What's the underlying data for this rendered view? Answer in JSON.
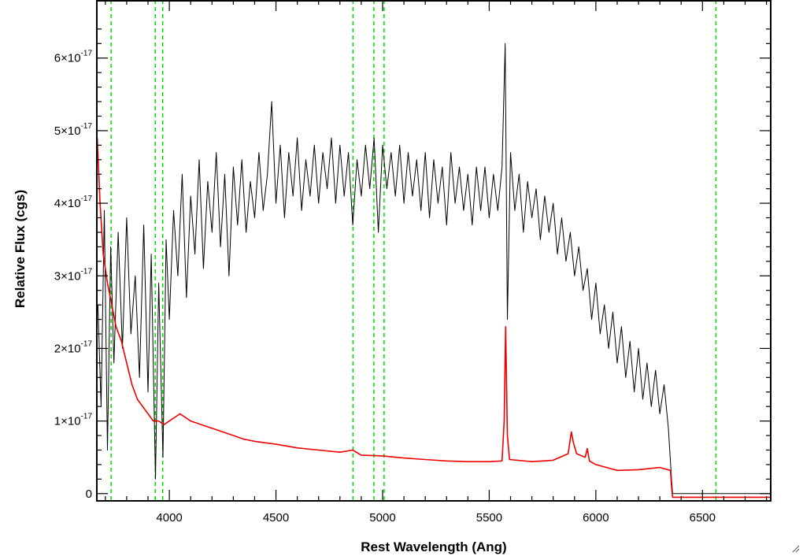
{
  "chart_data": {
    "type": "line",
    "title": "",
    "xlabel": "Rest Wavelength (Ang)",
    "ylabel": "Relative Flux (cgs)",
    "xlim": [
      3660,
      6820
    ],
    "ylim": [
      -1e-18,
      6.8e-17
    ],
    "x_ticks": [
      {
        "value": 4000,
        "label": "4000"
      },
      {
        "value": 4500,
        "label": "4500"
      },
      {
        "value": 5000,
        "label": "5000"
      },
      {
        "value": 5500,
        "label": "5500"
      },
      {
        "value": 6000,
        "label": "6000"
      },
      {
        "value": 6500,
        "label": "6500"
      }
    ],
    "y_ticks": [
      {
        "value": 0,
        "mantissa": "0",
        "exponent": ""
      },
      {
        "value": 1e-17,
        "mantissa": "1×10",
        "exponent": "-17"
      },
      {
        "value": 2e-17,
        "mantissa": "2×10",
        "exponent": "-17"
      },
      {
        "value": 3e-17,
        "mantissa": "3×10",
        "exponent": "-17"
      },
      {
        "value": 4e-17,
        "mantissa": "4×10",
        "exponent": "-17"
      },
      {
        "value": 5e-17,
        "mantissa": "5×10",
        "exponent": "-17"
      },
      {
        "value": 6e-17,
        "mantissa": "6×10",
        "exponent": "-17"
      }
    ],
    "reference_lines": {
      "color": "#00dd00",
      "style": "dashed",
      "x": [
        3727,
        3934,
        3969,
        4861,
        4959,
        5007,
        6563
      ]
    },
    "series": [
      {
        "role": "spectrum",
        "color": "#000000",
        "points": [
          [
            3665,
            2.6e-17
          ],
          [
            3680,
            1.2e-17
          ],
          [
            3695,
            3.9e-17
          ],
          [
            3710,
            6e-18
          ],
          [
            3725,
            3.4e-17
          ],
          [
            3740,
            1.8e-17
          ],
          [
            3760,
            3.6e-17
          ],
          [
            3780,
            2e-17
          ],
          [
            3800,
            3.8e-17
          ],
          [
            3820,
            2.2e-17
          ],
          [
            3840,
            3e-17
          ],
          [
            3860,
            1.6e-17
          ],
          [
            3880,
            3.7e-17
          ],
          [
            3900,
            1.4e-17
          ],
          [
            3915,
            3.3e-17
          ],
          [
            3935,
            2e-18
          ],
          [
            3950,
            2.9e-17
          ],
          [
            3970,
            5e-18
          ],
          [
            3985,
            3.5e-17
          ],
          [
            4000,
            2.4e-17
          ],
          [
            4020,
            3.9e-17
          ],
          [
            4040,
            3e-17
          ],
          [
            4060,
            4.4e-17
          ],
          [
            4080,
            2.7e-17
          ],
          [
            4100,
            4.1e-17
          ],
          [
            4120,
            3.3e-17
          ],
          [
            4140,
            4.6e-17
          ],
          [
            4160,
            3.1e-17
          ],
          [
            4180,
            4.3e-17
          ],
          [
            4200,
            3.6e-17
          ],
          [
            4220,
            4.7e-17
          ],
          [
            4240,
            3.4e-17
          ],
          [
            4260,
            4.4e-17
          ],
          [
            4280,
            3e-17
          ],
          [
            4300,
            4.5e-17
          ],
          [
            4320,
            3.7e-17
          ],
          [
            4340,
            4.6e-17
          ],
          [
            4360,
            3.6e-17
          ],
          [
            4380,
            4.3e-17
          ],
          [
            4400,
            3.8e-17
          ],
          [
            4420,
            4.7e-17
          ],
          [
            4440,
            3.9e-17
          ],
          [
            4460,
            4.4e-17
          ],
          [
            4480,
            5.4e-17
          ],
          [
            4500,
            4e-17
          ],
          [
            4520,
            4.8e-17
          ],
          [
            4540,
            3.8e-17
          ],
          [
            4560,
            4.7e-17
          ],
          [
            4580,
            4.1e-17
          ],
          [
            4600,
            4.9e-17
          ],
          [
            4620,
            3.9e-17
          ],
          [
            4640,
            4.6e-17
          ],
          [
            4660,
            4.1e-17
          ],
          [
            4680,
            4.8e-17
          ],
          [
            4700,
            4e-17
          ],
          [
            4720,
            4.7e-17
          ],
          [
            4740,
            4.2e-17
          ],
          [
            4760,
            4.9e-17
          ],
          [
            4780,
            4e-17
          ],
          [
            4800,
            4.8e-17
          ],
          [
            4820,
            4.1e-17
          ],
          [
            4840,
            4.7e-17
          ],
          [
            4860,
            3.7e-17
          ],
          [
            4880,
            4.6e-17
          ],
          [
            4900,
            4.1e-17
          ],
          [
            4920,
            4.8e-17
          ],
          [
            4940,
            4.2e-17
          ],
          [
            4960,
            4.9e-17
          ],
          [
            4980,
            3.6e-17
          ],
          [
            5000,
            4.8e-17
          ],
          [
            5020,
            4.2e-17
          ],
          [
            5040,
            4.7e-17
          ],
          [
            5060,
            4.1e-17
          ],
          [
            5080,
            4.8e-17
          ],
          [
            5100,
            4e-17
          ],
          [
            5120,
            4.7e-17
          ],
          [
            5140,
            4.1e-17
          ],
          [
            5160,
            4.6e-17
          ],
          [
            5180,
            3.9e-17
          ],
          [
            5200,
            4.7e-17
          ],
          [
            5220,
            3.8e-17
          ],
          [
            5240,
            4.6e-17
          ],
          [
            5260,
            4e-17
          ],
          [
            5280,
            4.5e-17
          ],
          [
            5300,
            3.7e-17
          ],
          [
            5320,
            4.7e-17
          ],
          [
            5340,
            4e-17
          ],
          [
            5360,
            4.5e-17
          ],
          [
            5380,
            3.9e-17
          ],
          [
            5400,
            4.4e-17
          ],
          [
            5420,
            3.7e-17
          ],
          [
            5440,
            4.5e-17
          ],
          [
            5460,
            3.9e-17
          ],
          [
            5480,
            4.5e-17
          ],
          [
            5500,
            3.8e-17
          ],
          [
            5520,
            4.4e-17
          ],
          [
            5540,
            3.9e-17
          ],
          [
            5560,
            4.5e-17
          ],
          [
            5575,
            6.2e-17
          ],
          [
            5585,
            2.4e-17
          ],
          [
            5600,
            4.7e-17
          ],
          [
            5620,
            3.9e-17
          ],
          [
            5640,
            4.4e-17
          ],
          [
            5660,
            3.6e-17
          ],
          [
            5680,
            4.3e-17
          ],
          [
            5700,
            3.8e-17
          ],
          [
            5720,
            4.2e-17
          ],
          [
            5740,
            3.5e-17
          ],
          [
            5760,
            4.1e-17
          ],
          [
            5780,
            3.6e-17
          ],
          [
            5800,
            4e-17
          ],
          [
            5820,
            3.3e-17
          ],
          [
            5840,
            3.8e-17
          ],
          [
            5860,
            3.2e-17
          ],
          [
            5880,
            3.6e-17
          ],
          [
            5900,
            3e-17
          ],
          [
            5920,
            3.4e-17
          ],
          [
            5940,
            2.8e-17
          ],
          [
            5960,
            3.1e-17
          ],
          [
            5980,
            2.4e-17
          ],
          [
            6000,
            2.9e-17
          ],
          [
            6020,
            2.2e-17
          ],
          [
            6040,
            2.6e-17
          ],
          [
            6060,
            2e-17
          ],
          [
            6080,
            2.5e-17
          ],
          [
            6100,
            1.8e-17
          ],
          [
            6120,
            2.3e-17
          ],
          [
            6140,
            1.6e-17
          ],
          [
            6160,
            2.1e-17
          ],
          [
            6180,
            1.4e-17
          ],
          [
            6200,
            2e-17
          ],
          [
            6220,
            1.3e-17
          ],
          [
            6240,
            1.8e-17
          ],
          [
            6260,
            1.2e-17
          ],
          [
            6280,
            1.7e-17
          ],
          [
            6300,
            1.1e-17
          ],
          [
            6320,
            1.5e-17
          ],
          [
            6340,
            9e-18
          ],
          [
            6355,
            2e-18
          ],
          [
            6360,
            0.0
          ],
          [
            6820,
            0.0
          ]
        ]
      },
      {
        "role": "error",
        "color": "#ee0000",
        "points": [
          [
            3662,
            4.9e-17
          ],
          [
            3675,
            4e-17
          ],
          [
            3690,
            3.3e-17
          ],
          [
            3710,
            2.9e-17
          ],
          [
            3730,
            2.6e-17
          ],
          [
            3750,
            2.3e-17
          ],
          [
            3775,
            2.1e-17
          ],
          [
            3800,
            1.8e-17
          ],
          [
            3825,
            1.5e-17
          ],
          [
            3850,
            1.3e-17
          ],
          [
            3875,
            1.2e-17
          ],
          [
            3900,
            1.1e-17
          ],
          [
            3925,
            1e-17
          ],
          [
            3950,
            1e-17
          ],
          [
            3975,
            9.5e-18
          ],
          [
            4000,
            1e-17
          ],
          [
            4025,
            1.05e-17
          ],
          [
            4050,
            1.1e-17
          ],
          [
            4075,
            1.05e-17
          ],
          [
            4100,
            1e-17
          ],
          [
            4150,
            9.5e-18
          ],
          [
            4200,
            9e-18
          ],
          [
            4250,
            8.5e-18
          ],
          [
            4300,
            8e-18
          ],
          [
            4350,
            7.5e-18
          ],
          [
            4400,
            7.2e-18
          ],
          [
            4500,
            6.8e-18
          ],
          [
            4600,
            6.3e-18
          ],
          [
            4700,
            6e-18
          ],
          [
            4800,
            5.7e-18
          ],
          [
            4860,
            6e-18
          ],
          [
            4900,
            5.3e-18
          ],
          [
            5000,
            5.2e-18
          ],
          [
            5100,
            4.9e-18
          ],
          [
            5200,
            4.7e-18
          ],
          [
            5300,
            4.5e-18
          ],
          [
            5400,
            4.4e-18
          ],
          [
            5500,
            4.4e-18
          ],
          [
            5560,
            4.5e-18
          ],
          [
            5570,
            1e-17
          ],
          [
            5577,
            2.3e-17
          ],
          [
            5585,
            8e-18
          ],
          [
            5595,
            4.7e-18
          ],
          [
            5700,
            4.4e-18
          ],
          [
            5800,
            4.6e-18
          ],
          [
            5870,
            5.5e-18
          ],
          [
            5885,
            8.5e-18
          ],
          [
            5895,
            7e-18
          ],
          [
            5910,
            5.5e-18
          ],
          [
            5950,
            5e-18
          ],
          [
            5960,
            6.2e-18
          ],
          [
            5970,
            4.5e-18
          ],
          [
            6000,
            4e-18
          ],
          [
            6100,
            3.2e-18
          ],
          [
            6200,
            3.3e-18
          ],
          [
            6300,
            3.6e-18
          ],
          [
            6350,
            3.2e-18
          ],
          [
            6355,
            1e-18
          ],
          [
            6360,
            -5e-19
          ],
          [
            6820,
            -5e-19
          ]
        ]
      }
    ],
    "grid": false,
    "legend": "none"
  }
}
